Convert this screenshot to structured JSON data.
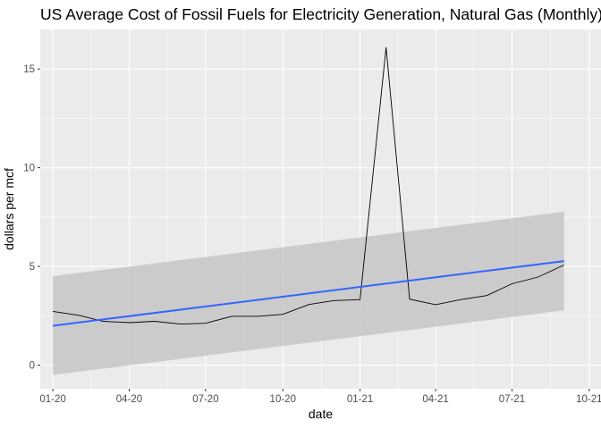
{
  "chart_data": {
    "type": "line",
    "title": "US Average Cost of Fossil Fuels for Electricity Generation, Natural Gas (Monthly)",
    "xlabel": "date",
    "ylabel": "dollars per mcf",
    "x": [
      "2020-01",
      "2020-02",
      "2020-03",
      "2020-04",
      "2020-05",
      "2020-06",
      "2020-07",
      "2020-08",
      "2020-09",
      "2020-10",
      "2020-11",
      "2020-12",
      "2021-01",
      "2021-02",
      "2021-03",
      "2021-04",
      "2021-05",
      "2021-06",
      "2021-07",
      "2021-08",
      "2021-09"
    ],
    "series": [
      {
        "values": [
          2.72,
          2.52,
          2.22,
          2.15,
          2.22,
          2.08,
          2.12,
          2.47,
          2.47,
          2.57,
          3.07,
          3.27,
          3.32,
          16.1,
          3.34,
          3.06,
          3.32,
          3.52,
          4.12,
          4.46,
          5.07
        ]
      }
    ],
    "trend": {
      "method": "linear",
      "start": 1.99,
      "end": 5.27,
      "ci_start": [
        -0.5,
        4.5
      ],
      "ci_end": [
        2.77,
        7.77
      ]
    },
    "xlim": [
      "2019-12-17",
      "2021-10-15"
    ],
    "ylim": [
      -1.2,
      17.0
    ],
    "x_ticks": [
      {
        "date": "2020-01-01",
        "label": "01-20"
      },
      {
        "date": "2020-04-01",
        "label": "04-20"
      },
      {
        "date": "2020-07-01",
        "label": "07-20"
      },
      {
        "date": "2020-10-01",
        "label": "10-20"
      },
      {
        "date": "2021-01-01",
        "label": "01-21"
      },
      {
        "date": "2021-04-01",
        "label": "04-21"
      },
      {
        "date": "2021-07-01",
        "label": "07-21"
      },
      {
        "date": "2021-10-01",
        "label": "10-21"
      }
    ],
    "y_ticks": [
      0,
      5,
      10,
      15
    ],
    "grid": true,
    "colors": {
      "panel": "#ebebeb",
      "grid": "#ffffff",
      "line": "#000000",
      "trend": "#3366ff",
      "band": "#c8c8c8"
    }
  }
}
